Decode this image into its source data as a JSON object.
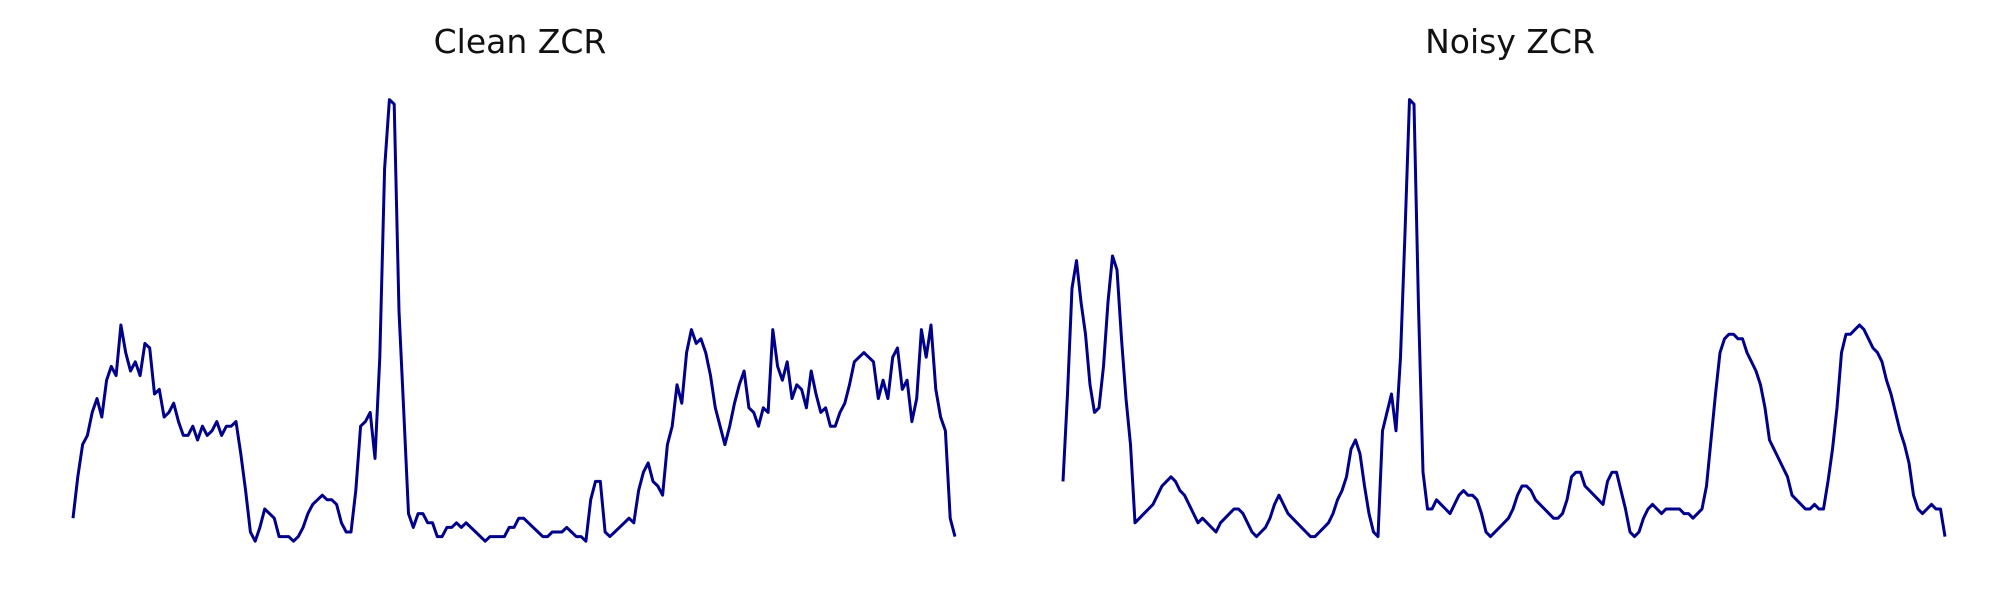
{
  "charts": {
    "clean": {
      "title": "Clean ZCR"
    },
    "noisy": {
      "title": "Noisy ZCR"
    }
  },
  "chart_data": [
    {
      "type": "line",
      "title": "Clean ZCR",
      "xlabel": "",
      "ylabel": "",
      "axes_visible": false,
      "grid": false,
      "ylim": [
        0,
        1
      ],
      "series": [
        {
          "color": "#00008B",
          "values": [
            0.08,
            0.17,
            0.24,
            0.26,
            0.31,
            0.34,
            0.3,
            0.38,
            0.41,
            0.39,
            0.5,
            0.44,
            0.4,
            0.42,
            0.39,
            0.46,
            0.45,
            0.35,
            0.36,
            0.3,
            0.31,
            0.33,
            0.29,
            0.26,
            0.26,
            0.28,
            0.25,
            0.28,
            0.26,
            0.27,
            0.29,
            0.26,
            0.28,
            0.28,
            0.29,
            0.22,
            0.14,
            0.05,
            0.03,
            0.06,
            0.1,
            0.09,
            0.08,
            0.04,
            0.04,
            0.04,
            0.03,
            0.04,
            0.06,
            0.09,
            0.11,
            0.12,
            0.13,
            0.12,
            0.12,
            0.11,
            0.07,
            0.05,
            0.05,
            0.14,
            0.28,
            0.29,
            0.31,
            0.21,
            0.43,
            0.84,
            0.99,
            0.98,
            0.53,
            0.31,
            0.09,
            0.06,
            0.09,
            0.09,
            0.07,
            0.07,
            0.04,
            0.04,
            0.06,
            0.06,
            0.07,
            0.06,
            0.07,
            0.06,
            0.05,
            0.04,
            0.03,
            0.04,
            0.04,
            0.04,
            0.04,
            0.06,
            0.06,
            0.08,
            0.08,
            0.07,
            0.06,
            0.05,
            0.04,
            0.04,
            0.05,
            0.05,
            0.05,
            0.06,
            0.05,
            0.04,
            0.04,
            0.03,
            0.12,
            0.16,
            0.16,
            0.05,
            0.04,
            0.05,
            0.06,
            0.07,
            0.08,
            0.07,
            0.14,
            0.18,
            0.2,
            0.16,
            0.15,
            0.13,
            0.24,
            0.28,
            0.37,
            0.33,
            0.44,
            0.49,
            0.46,
            0.47,
            0.44,
            0.39,
            0.32,
            0.28,
            0.24,
            0.28,
            0.33,
            0.37,
            0.4,
            0.32,
            0.31,
            0.28,
            0.32,
            0.31,
            0.49,
            0.41,
            0.38,
            0.42,
            0.34,
            0.37,
            0.36,
            0.32,
            0.4,
            0.35,
            0.31,
            0.32,
            0.28,
            0.28,
            0.31,
            0.33,
            0.37,
            0.42,
            0.43,
            0.44,
            0.43,
            0.42,
            0.34,
            0.38,
            0.34,
            0.43,
            0.45,
            0.36,
            0.38,
            0.29,
            0.34,
            0.49,
            0.43,
            0.5,
            0.36,
            0.3,
            0.27,
            0.08,
            0.04
          ]
        }
      ]
    },
    {
      "type": "line",
      "title": "Noisy ZCR",
      "xlabel": "",
      "ylabel": "",
      "axes_visible": false,
      "grid": false,
      "ylim": [
        0,
        1
      ],
      "series": [
        {
          "color": "#00008B",
          "values": [
            0.16,
            0.35,
            0.58,
            0.64,
            0.55,
            0.48,
            0.37,
            0.31,
            0.32,
            0.41,
            0.55,
            0.65,
            0.62,
            0.47,
            0.34,
            0.24,
            0.07,
            0.08,
            0.09,
            0.1,
            0.11,
            0.13,
            0.15,
            0.16,
            0.17,
            0.16,
            0.14,
            0.13,
            0.11,
            0.09,
            0.07,
            0.08,
            0.07,
            0.06,
            0.05,
            0.07,
            0.08,
            0.09,
            0.1,
            0.1,
            0.09,
            0.07,
            0.05,
            0.04,
            0.05,
            0.06,
            0.08,
            0.11,
            0.13,
            0.11,
            0.09,
            0.08,
            0.07,
            0.06,
            0.05,
            0.04,
            0.04,
            0.05,
            0.06,
            0.07,
            0.09,
            0.12,
            0.14,
            0.17,
            0.23,
            0.25,
            0.22,
            0.15,
            0.09,
            0.05,
            0.04,
            0.27,
            0.31,
            0.35,
            0.27,
            0.43,
            0.7,
            0.99,
            0.98,
            0.54,
            0.18,
            0.1,
            0.1,
            0.12,
            0.11,
            0.1,
            0.09,
            0.11,
            0.13,
            0.14,
            0.13,
            0.13,
            0.12,
            0.09,
            0.05,
            0.04,
            0.05,
            0.06,
            0.07,
            0.08,
            0.1,
            0.13,
            0.15,
            0.15,
            0.14,
            0.12,
            0.11,
            0.1,
            0.09,
            0.08,
            0.08,
            0.09,
            0.12,
            0.17,
            0.18,
            0.18,
            0.15,
            0.14,
            0.13,
            0.12,
            0.11,
            0.16,
            0.18,
            0.18,
            0.14,
            0.1,
            0.05,
            0.04,
            0.05,
            0.08,
            0.1,
            0.11,
            0.1,
            0.09,
            0.1,
            0.1,
            0.1,
            0.1,
            0.09,
            0.09,
            0.08,
            0.09,
            0.1,
            0.15,
            0.25,
            0.35,
            0.44,
            0.47,
            0.48,
            0.48,
            0.47,
            0.47,
            0.44,
            0.42,
            0.4,
            0.37,
            0.32,
            0.25,
            0.23,
            0.21,
            0.19,
            0.17,
            0.13,
            0.12,
            0.11,
            0.1,
            0.1,
            0.11,
            0.1,
            0.1,
            0.16,
            0.23,
            0.32,
            0.44,
            0.48,
            0.48,
            0.49,
            0.5,
            0.49,
            0.47,
            0.45,
            0.44,
            0.42,
            0.38,
            0.35,
            0.31,
            0.27,
            0.24,
            0.2,
            0.13,
            0.1,
            0.09,
            0.1,
            0.11,
            0.1,
            0.1,
            0.04
          ]
        }
      ]
    }
  ]
}
